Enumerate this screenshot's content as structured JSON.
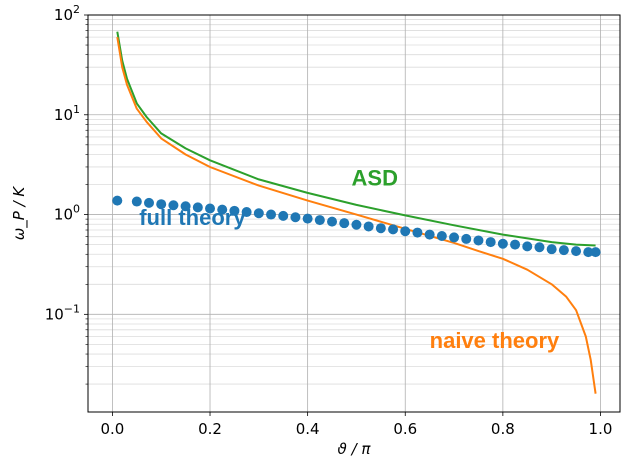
{
  "chart_data": {
    "type": "line",
    "xlabel": "ϑ / π",
    "ylabel": "ω_P / K",
    "xlim": [
      -0.05,
      1.04
    ],
    "ylim": [
      0.0105,
      100
    ],
    "yscale": "log",
    "grid": "both-major-and-minor",
    "x_ticks": [
      "0.0",
      "0.2",
      "0.4",
      "0.6",
      "0.8",
      "1.0"
    ],
    "x_tick_values": [
      0,
      0.2,
      0.4,
      0.6,
      0.8,
      1.0
    ],
    "y_ticks": [
      {
        "value": 0.1,
        "base": "10",
        "exp": "−1"
      },
      {
        "value": 1,
        "base": "10",
        "exp": "0"
      },
      {
        "value": 10,
        "base": "10",
        "exp": "1"
      },
      {
        "value": 100,
        "base": "10",
        "exp": "2"
      }
    ],
    "series": [
      {
        "name": "ASD",
        "style": "line",
        "color": "#2ca02c",
        "x": [
          0.01,
          0.02,
          0.03,
          0.05,
          0.07,
          0.1,
          0.15,
          0.2,
          0.3,
          0.4,
          0.5,
          0.6,
          0.7,
          0.8,
          0.9,
          0.95,
          0.99
        ],
        "y": [
          68,
          35,
          23,
          13,
          9.5,
          6.5,
          4.6,
          3.5,
          2.25,
          1.65,
          1.25,
          0.98,
          0.78,
          0.63,
          0.53,
          0.5,
          0.49
        ]
      },
      {
        "name": "naive theory",
        "style": "line",
        "color": "#ff7f0e",
        "x": [
          0.01,
          0.02,
          0.03,
          0.05,
          0.07,
          0.1,
          0.15,
          0.2,
          0.3,
          0.4,
          0.5,
          0.6,
          0.7,
          0.75,
          0.8,
          0.85,
          0.9,
          0.93,
          0.95,
          0.97,
          0.98,
          0.99
        ],
        "y": [
          60,
          30,
          20,
          11.5,
          8.5,
          5.8,
          4.0,
          3.0,
          1.95,
          1.38,
          1.0,
          0.72,
          0.52,
          0.43,
          0.36,
          0.28,
          0.2,
          0.15,
          0.11,
          0.06,
          0.035,
          0.016
        ]
      },
      {
        "name": "full theory",
        "style": "scatter",
        "color": "#1f77b4",
        "x": [
          0.01,
          0.05,
          0.075,
          0.1,
          0.125,
          0.15,
          0.175,
          0.2,
          0.225,
          0.25,
          0.275,
          0.3,
          0.325,
          0.35,
          0.375,
          0.4,
          0.425,
          0.45,
          0.475,
          0.5,
          0.525,
          0.55,
          0.575,
          0.6,
          0.625,
          0.65,
          0.675,
          0.7,
          0.725,
          0.75,
          0.775,
          0.8,
          0.825,
          0.85,
          0.875,
          0.9,
          0.925,
          0.95,
          0.975,
          0.99
        ],
        "y": [
          1.38,
          1.35,
          1.31,
          1.27,
          1.24,
          1.21,
          1.18,
          1.15,
          1.12,
          1.09,
          1.06,
          1.03,
          1.0,
          0.97,
          0.94,
          0.91,
          0.88,
          0.85,
          0.82,
          0.79,
          0.76,
          0.73,
          0.71,
          0.68,
          0.66,
          0.63,
          0.61,
          0.59,
          0.57,
          0.55,
          0.53,
          0.51,
          0.5,
          0.48,
          0.47,
          0.45,
          0.44,
          0.43,
          0.42,
          0.42
        ]
      }
    ],
    "annotations": [
      {
        "text": "ASD",
        "series": "ASD",
        "at_x": 0.49,
        "at_y": 1.95
      },
      {
        "text": "full theory",
        "series": "full theory",
        "at_x": 0.055,
        "at_y": 0.79
      },
      {
        "text": "naive theory",
        "series": "naive theory",
        "at_x": 0.65,
        "at_y": 0.046
      }
    ]
  }
}
